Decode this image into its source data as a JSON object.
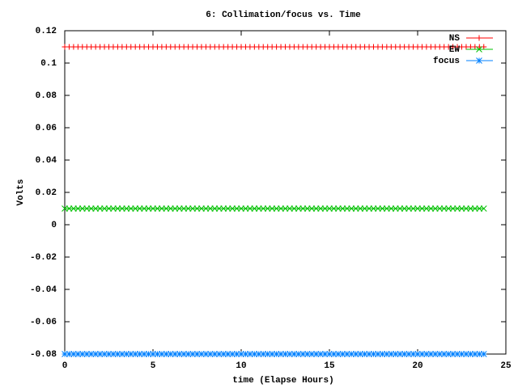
{
  "chart_data": {
    "type": "line",
    "title": "6: Collimation/focus vs. Time",
    "x_label": "time (Elapse Hours)",
    "y_label": "Volts",
    "x": [
      0,
      0.25,
      0.5,
      0.75,
      1,
      1.25,
      1.5,
      1.75,
      2,
      2.25,
      2.5,
      2.75,
      3,
      3.25,
      3.5,
      3.75,
      4,
      4.25,
      4.5,
      4.75,
      5,
      5.25,
      5.5,
      5.75,
      6,
      6.25,
      6.5,
      6.75,
      7,
      7.25,
      7.5,
      7.75,
      8,
      8.25,
      8.5,
      8.75,
      9,
      9.25,
      9.5,
      9.75,
      10,
      10.25,
      10.5,
      10.75,
      11,
      11.25,
      11.5,
      11.75,
      12,
      12.25,
      12.5,
      12.75,
      13,
      13.25,
      13.5,
      13.75,
      14,
      14.25,
      14.5,
      14.75,
      15,
      15.25,
      15.5,
      15.75,
      16,
      16.25,
      16.5,
      16.75,
      17,
      17.25,
      17.5,
      17.75,
      18,
      18.25,
      18.5,
      18.75,
      19,
      19.25,
      19.5,
      19.75,
      20,
      20.25,
      20.5,
      20.75,
      21,
      21.25,
      21.5,
      21.75,
      22,
      22.25,
      22.5,
      22.75,
      23,
      23.25,
      23.5,
      23.75
    ],
    "series": [
      {
        "name": "NS",
        "color": "#ff0000",
        "marker": "plus",
        "values": [
          0.11,
          0.11,
          0.11,
          0.11,
          0.11,
          0.11,
          0.11,
          0.11,
          0.11,
          0.11,
          0.11,
          0.11,
          0.11,
          0.11,
          0.11,
          0.11,
          0.11,
          0.11,
          0.11,
          0.11,
          0.11,
          0.11,
          0.11,
          0.11,
          0.11,
          0.11,
          0.11,
          0.11,
          0.11,
          0.11,
          0.11,
          0.11,
          0.11,
          0.11,
          0.11,
          0.11,
          0.11,
          0.11,
          0.11,
          0.11,
          0.11,
          0.11,
          0.11,
          0.11,
          0.11,
          0.11,
          0.11,
          0.11,
          0.11,
          0.11,
          0.11,
          0.11,
          0.11,
          0.11,
          0.11,
          0.11,
          0.11,
          0.11,
          0.11,
          0.11,
          0.11,
          0.11,
          0.11,
          0.11,
          0.11,
          0.11,
          0.11,
          0.11,
          0.11,
          0.11,
          0.11,
          0.11,
          0.11,
          0.11,
          0.11,
          0.11,
          0.11,
          0.11,
          0.11,
          0.11,
          0.11,
          0.11,
          0.11,
          0.11,
          0.11,
          0.11,
          0.11,
          0.11,
          0.11,
          0.11,
          0.11,
          0.11,
          0.11,
          0.11,
          0.11,
          0.11
        ]
      },
      {
        "name": "EW",
        "color": "#00c000",
        "marker": "cross",
        "values": [
          0.01,
          0.01,
          0.01,
          0.01,
          0.01,
          0.01,
          0.01,
          0.01,
          0.01,
          0.01,
          0.01,
          0.01,
          0.01,
          0.01,
          0.01,
          0.01,
          0.01,
          0.01,
          0.01,
          0.01,
          0.01,
          0.01,
          0.01,
          0.01,
          0.01,
          0.01,
          0.01,
          0.01,
          0.01,
          0.01,
          0.01,
          0.01,
          0.01,
          0.01,
          0.01,
          0.01,
          0.01,
          0.01,
          0.01,
          0.01,
          0.01,
          0.01,
          0.01,
          0.01,
          0.01,
          0.01,
          0.01,
          0.01,
          0.01,
          0.01,
          0.01,
          0.01,
          0.01,
          0.01,
          0.01,
          0.01,
          0.01,
          0.01,
          0.01,
          0.01,
          0.01,
          0.01,
          0.01,
          0.01,
          0.01,
          0.01,
          0.01,
          0.01,
          0.01,
          0.01,
          0.01,
          0.01,
          0.01,
          0.01,
          0.01,
          0.01,
          0.01,
          0.01,
          0.01,
          0.01,
          0.01,
          0.01,
          0.01,
          0.01,
          0.01,
          0.01,
          0.01,
          0.01,
          0.01,
          0.01,
          0.01,
          0.01,
          0.01,
          0.01,
          0.01,
          0.01
        ]
      },
      {
        "name": "focus",
        "color": "#0080ff",
        "marker": "star",
        "values": [
          -0.08,
          -0.08,
          -0.08,
          -0.08,
          -0.08,
          -0.08,
          -0.08,
          -0.08,
          -0.08,
          -0.08,
          -0.08,
          -0.08,
          -0.08,
          -0.08,
          -0.08,
          -0.08,
          -0.08,
          -0.08,
          -0.08,
          -0.08,
          -0.08,
          -0.08,
          -0.08,
          -0.08,
          -0.08,
          -0.08,
          -0.08,
          -0.08,
          -0.08,
          -0.08,
          -0.08,
          -0.08,
          -0.08,
          -0.08,
          -0.08,
          -0.08,
          -0.08,
          -0.08,
          -0.08,
          -0.08,
          -0.08,
          -0.08,
          -0.08,
          -0.08,
          -0.08,
          -0.08,
          -0.08,
          -0.08,
          -0.08,
          -0.08,
          -0.08,
          -0.08,
          -0.08,
          -0.08,
          -0.08,
          -0.08,
          -0.08,
          -0.08,
          -0.08,
          -0.08,
          -0.08,
          -0.08,
          -0.08,
          -0.08,
          -0.08,
          -0.08,
          -0.08,
          -0.08,
          -0.08,
          -0.08,
          -0.08,
          -0.08,
          -0.08,
          -0.08,
          -0.08,
          -0.08,
          -0.08,
          -0.08,
          -0.08,
          -0.08,
          -0.08,
          -0.08,
          -0.08,
          -0.08,
          -0.08,
          -0.08,
          -0.08,
          -0.08,
          -0.08,
          -0.08,
          -0.08,
          -0.08,
          -0.08,
          -0.08,
          -0.08,
          -0.08
        ]
      }
    ],
    "xlim": [
      0,
      25
    ],
    "xticks": [
      0,
      5,
      10,
      15,
      20,
      25
    ],
    "ylim": [
      -0.08,
      0.12
    ],
    "yticks": [
      -0.08,
      -0.06,
      -0.04,
      -0.02,
      0,
      0.02,
      0.04,
      0.06,
      0.08,
      0.1,
      0.12
    ],
    "grid": false,
    "legend": "top-right"
  }
}
